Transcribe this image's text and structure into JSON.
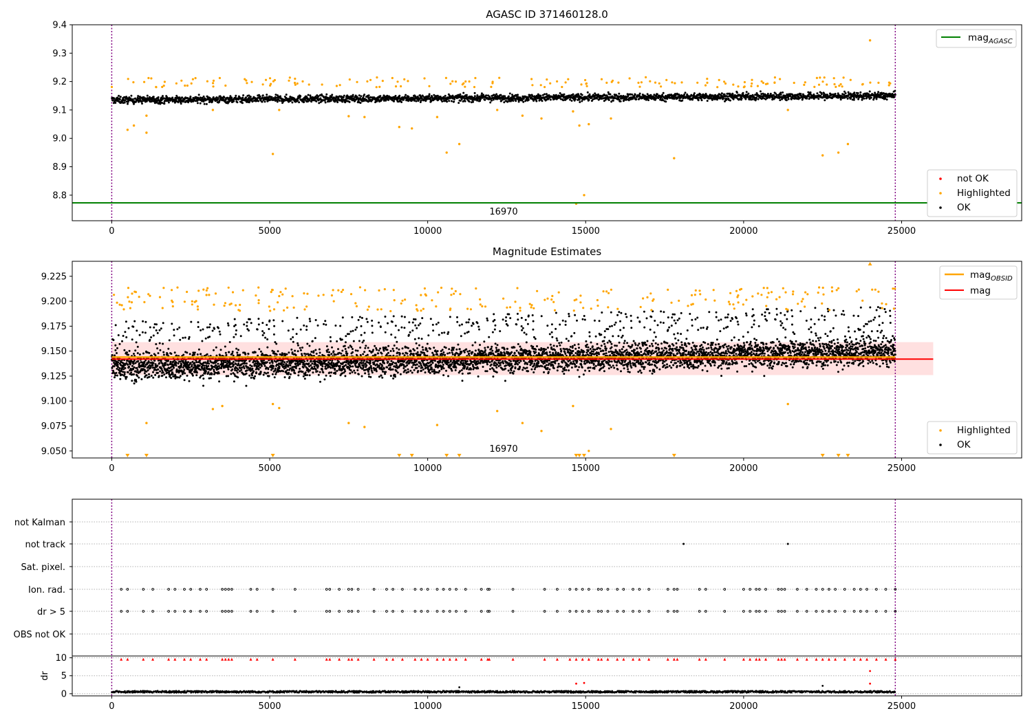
{
  "figure": {
    "title_top": "AGASC ID 371460128.0",
    "title_mid": "Magnitude Estimates",
    "obsid_annotation": "16970"
  },
  "colors": {
    "ok": "#000000",
    "highlighted": "#ffa500",
    "not_ok": "#ff0000",
    "mag_agasc": "#008000",
    "mag_obsid": "#ffa500",
    "mag": "#ff0000",
    "obs_boundary": "#800080",
    "mag_band": "#ffdddd"
  },
  "chart_data": [
    {
      "type": "scatter",
      "title": "AGASC ID 371460128.0",
      "xlim": [
        -1250,
        28800
      ],
      "ylim": [
        8.71,
        9.4
      ],
      "xticks": [
        0,
        5000,
        10000,
        15000,
        20000,
        25000
      ],
      "yticks": [
        8.8,
        8.9,
        9.0,
        9.1,
        9.2,
        9.3,
        9.4
      ],
      "obs_boundaries": [
        0,
        24800
      ],
      "mag_agasc": 8.773,
      "ok_band": {
        "x": [
          0,
          24800
        ],
        "center_start": 9.135,
        "center_end": 9.15,
        "spread": 0.025
      },
      "highlighted_points": [
        [
          500,
          9.03
        ],
        [
          700,
          9.045
        ],
        [
          1100,
          9.08
        ],
        [
          1100,
          9.02
        ],
        [
          3200,
          9.1
        ],
        [
          5100,
          8.945
        ],
        [
          5300,
          9.1
        ],
        [
          7500,
          9.078
        ],
        [
          8000,
          9.075
        ],
        [
          9100,
          9.04
        ],
        [
          9500,
          9.035
        ],
        [
          10300,
          9.075
        ],
        [
          10600,
          8.95
        ],
        [
          11000,
          8.98
        ],
        [
          12200,
          9.1
        ],
        [
          13000,
          9.08
        ],
        [
          13600,
          9.07
        ],
        [
          14600,
          9.095
        ],
        [
          14700,
          8.77
        ],
        [
          14800,
          9.045
        ],
        [
          14950,
          8.8
        ],
        [
          15100,
          9.05
        ],
        [
          15800,
          9.07
        ],
        [
          17800,
          8.93
        ],
        [
          21400,
          9.1
        ],
        [
          22500,
          8.94
        ],
        [
          23000,
          8.95
        ],
        [
          23300,
          8.98
        ],
        [
          24000,
          9.345
        ]
      ],
      "legend": {
        "series": [
          "not OK",
          "Highlighted",
          "OK"
        ],
        "line": "mag",
        "line_subscript": "AGASC"
      }
    },
    {
      "type": "scatter",
      "title": "Magnitude Estimates",
      "xlim": [
        -1250,
        28800
      ],
      "ylim": [
        9.043,
        9.24
      ],
      "xticks": [
        0,
        5000,
        10000,
        15000,
        20000,
        25000
      ],
      "yticks": [
        9.05,
        9.075,
        9.1,
        9.125,
        9.15,
        9.175,
        9.2,
        9.225
      ],
      "mag_obsid": 9.144,
      "mag": 9.142,
      "mag_band": [
        9.126,
        9.159
      ],
      "highlighted_points": [
        [
          1100,
          9.078
        ],
        [
          3200,
          9.092
        ],
        [
          3500,
          9.095
        ],
        [
          5100,
          9.097
        ],
        [
          5300,
          9.093
        ],
        [
          7500,
          9.078
        ],
        [
          8000,
          9.074
        ],
        [
          10300,
          9.076
        ],
        [
          12200,
          9.09
        ],
        [
          13000,
          9.078
        ],
        [
          13600,
          9.07
        ],
        [
          14600,
          9.095
        ],
        [
          15100,
          9.05
        ],
        [
          15800,
          9.072
        ],
        [
          21400,
          9.097
        ]
      ],
      "below_range_markers_x": [
        500,
        1100,
        5100,
        9100,
        9500,
        10600,
        11000,
        14700,
        14800,
        14950,
        17800,
        22500,
        23000,
        23300
      ],
      "above_range_markers_x": [
        24000
      ],
      "legend": {
        "series": [
          "Highlighted",
          "OK"
        ],
        "lines": [
          "mag",
          "mag"
        ],
        "line_subscripts": [
          "OBSID",
          ""
        ]
      }
    },
    {
      "type": "scatter",
      "title": "",
      "xlim": [
        -1250,
        28800
      ],
      "xticks": [
        0,
        5000,
        10000,
        15000,
        20000,
        25000
      ],
      "flag_categories": [
        "not Kalman",
        "not track",
        "Sat. pixel.",
        "Ion. rad.",
        "dr > 5",
        "OBS not OK"
      ],
      "not_track_x": [
        18100,
        21400
      ],
      "flag_x": [
        300,
        500,
        1000,
        1300,
        1800,
        2000,
        2300,
        2500,
        2800,
        3000,
        3500,
        3600,
        3700,
        3800,
        4400,
        4600,
        5100,
        5800,
        6800,
        6900,
        7200,
        7500,
        7600,
        7800,
        8300,
        8700,
        8900,
        9200,
        9600,
        9800,
        10000,
        10300,
        10500,
        10700,
        10900,
        11200,
        11700,
        11900,
        11950,
        12700,
        13700,
        14100,
        14500,
        14700,
        14900,
        15100,
        15400,
        15500,
        15700,
        16000,
        16200,
        16500,
        16700,
        17000,
        17600,
        17800,
        17900,
        18600,
        18800,
        19400,
        20000,
        20200,
        20400,
        20500,
        20700,
        21100,
        21200,
        21300,
        21700,
        22000,
        22300,
        22500,
        22700,
        22900,
        23200,
        23500,
        23700,
        23900,
        24200,
        24500,
        24800
      ],
      "dr_axis": {
        "ylabel": "dr",
        "yticks": [
          0,
          5,
          10
        ],
        "ylim": [
          -0.6,
          10.5
        ]
      },
      "dr_outliers": [
        [
          14700,
          2.8
        ],
        [
          14950,
          3.0
        ],
        [
          24000,
          6.3
        ],
        [
          24000,
          2.8
        ],
        [
          22500,
          2.2
        ],
        [
          11000,
          1.8
        ]
      ]
    }
  ]
}
